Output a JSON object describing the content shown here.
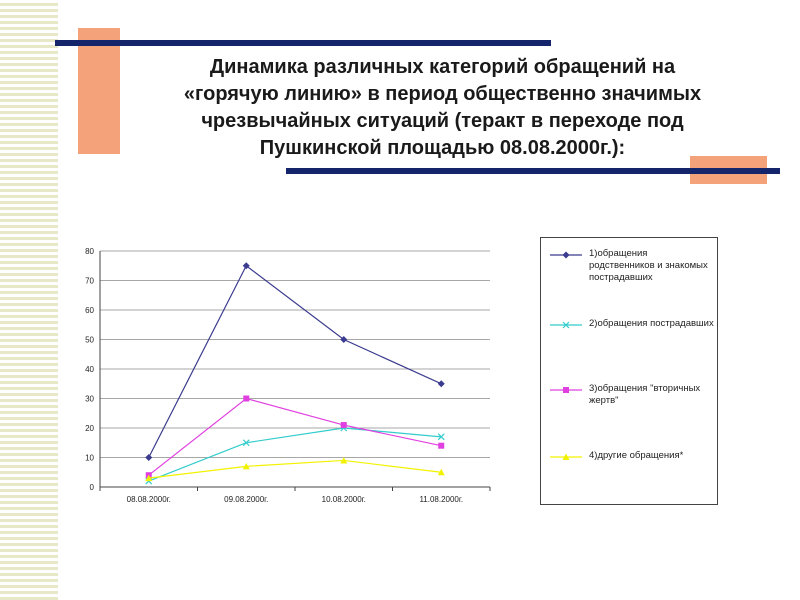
{
  "title_lines": [
    "Динамика различных категорий обращений на",
    "«горячую линию» в период общественно значимых",
    "чрезвычайных ситуаций (теракт в переходе под",
    "Пушкинской площадью 08.08.2000г.):"
  ],
  "chart_data": {
    "type": "line",
    "categories": [
      "08.08.2000г.",
      "09.08.2000г.",
      "10.08.2000г.",
      "11.08.2000г."
    ],
    "ylim": [
      0,
      80
    ],
    "yticks": [
      0,
      10,
      20,
      30,
      40,
      50,
      60,
      70,
      80
    ],
    "grid": true,
    "legend_position": "right",
    "series": [
      {
        "name": "1)обращения родственников и знакомых пострадавших",
        "values": [
          10,
          75,
          50,
          35
        ],
        "color": "#3b3b8f",
        "marker": "diamond"
      },
      {
        "name": "2)обращения пострадавших",
        "values": [
          2,
          15,
          20,
          17
        ],
        "color": "#33cccc",
        "marker": "x"
      },
      {
        "name": "3)обращения \"вторичных жертв\"",
        "values": [
          4,
          30,
          21,
          14
        ],
        "color": "#e040e0",
        "marker": "square"
      },
      {
        "name": "4)другие обращения*",
        "values": [
          3,
          7,
          9,
          5
        ],
        "color": "#f2f200",
        "marker": "triangle"
      }
    ]
  }
}
